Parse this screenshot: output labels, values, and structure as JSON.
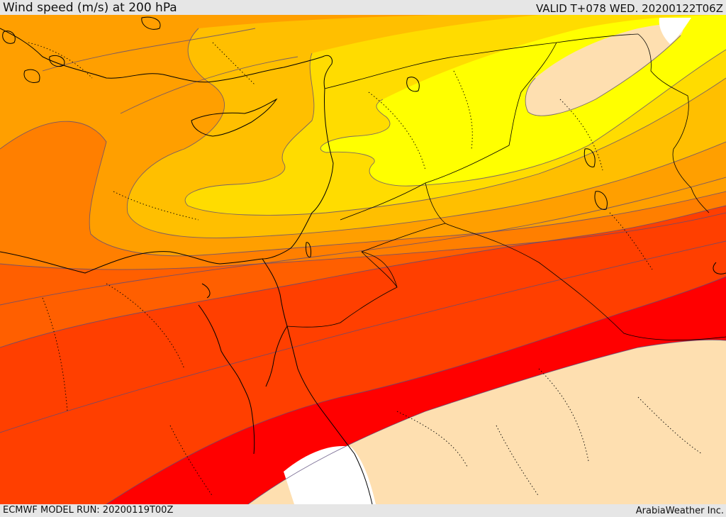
{
  "header": {
    "title": "Wind speed (m/s) at 200 hPa",
    "valid": "VALID T+078 WED. 20200122T06Z"
  },
  "footer": {
    "model_run": "ECMWF MODEL RUN: 20200119T00Z",
    "credit": "ArabiaWeather Inc."
  },
  "map": {
    "variable": "wind speed",
    "level": "200 hPa",
    "colors": {
      "land_low": "#fedfb0",
      "band_1": "#ffff00",
      "band_2": "#ffdc00",
      "band_3": "#ffbf00",
      "band_4": "#ff9f00",
      "band_5": "#ff7f00",
      "band_6": "#ff5f00",
      "band_7": "#ff3f00",
      "band_8": "#ff0000",
      "contour": "#5a4a7a",
      "coast": "#000000"
    }
  }
}
